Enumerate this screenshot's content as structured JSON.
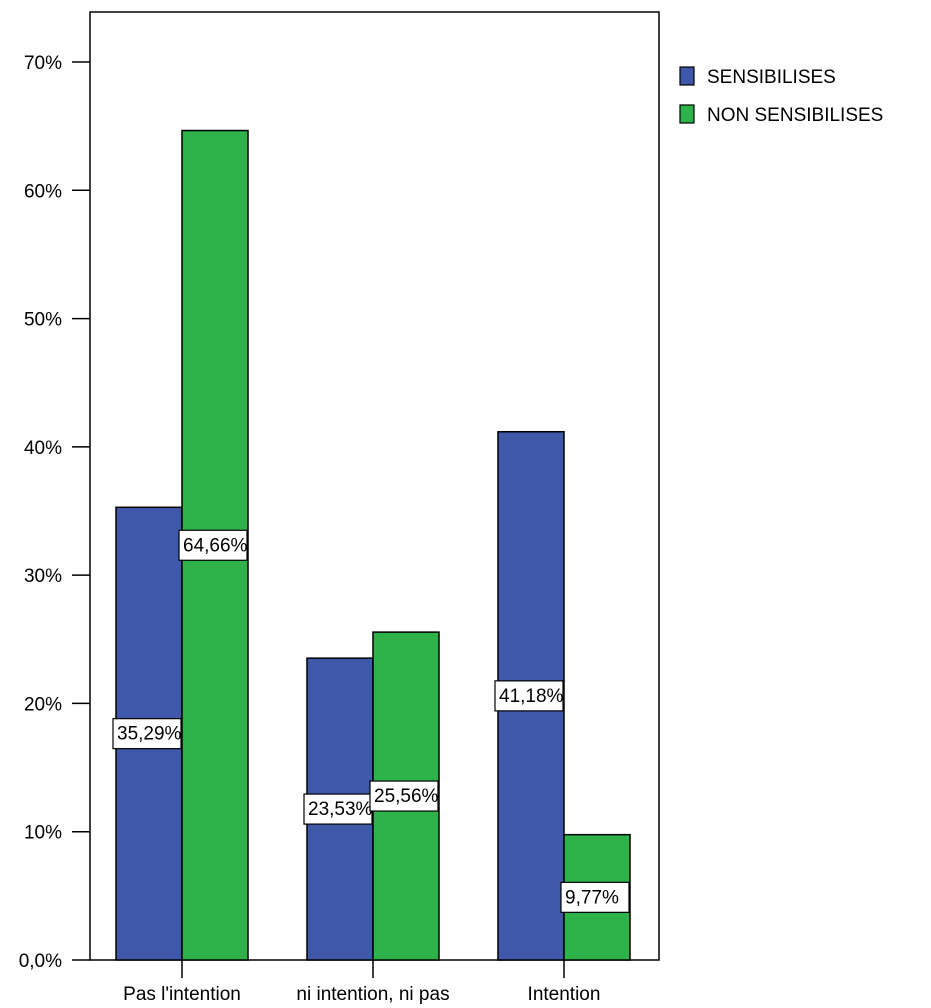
{
  "chart_data": {
    "type": "bar",
    "categories": [
      "Pas l'intention",
      "ni intention, ni pas",
      "Intention"
    ],
    "series": [
      {
        "name": "SENSIBILISES",
        "values": [
          35.29,
          23.53,
          41.18
        ],
        "labels": [
          "35,29%",
          "23,53%",
          "41,18%"
        ],
        "color": "#3f58aa"
      },
      {
        "name": "NON SENSIBILISES",
        "values": [
          64.66,
          25.56,
          9.77
        ],
        "labels": [
          "64,66%",
          "25,56%",
          "9,77%"
        ],
        "color": "#2db34a"
      }
    ],
    "y_ticks": [
      {
        "value": 0,
        "label": "0,0%"
      },
      {
        "value": 10,
        "label": "10%"
      },
      {
        "value": 20,
        "label": "20%"
      },
      {
        "value": 30,
        "label": "30%"
      },
      {
        "value": 40,
        "label": "40%"
      },
      {
        "value": 50,
        "label": "50%"
      },
      {
        "value": 60,
        "label": "60%"
      },
      {
        "value": 70,
        "label": "70%"
      }
    ],
    "ylim": [
      0,
      73.9
    ],
    "grid": false,
    "legend_position": "top-right"
  }
}
